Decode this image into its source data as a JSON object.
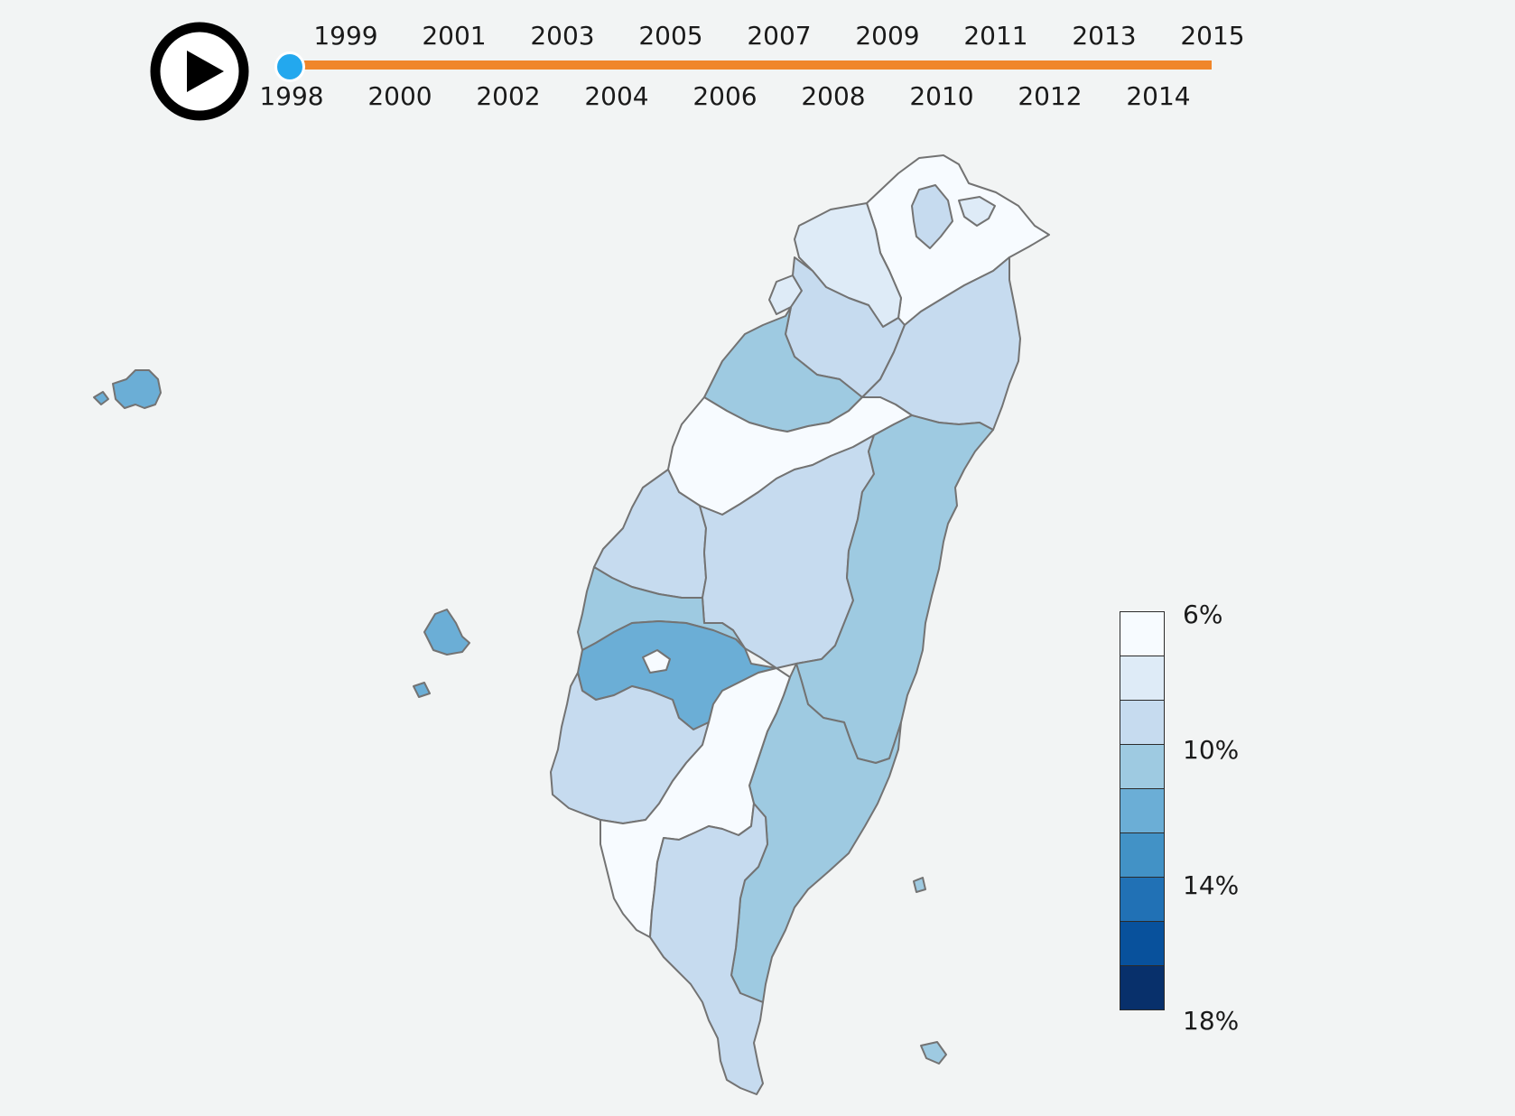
{
  "player": {
    "icon": "play-icon"
  },
  "timeline": {
    "years_top": [
      "1999",
      "2001",
      "2003",
      "2005",
      "2007",
      "2009",
      "2011",
      "2013",
      "2015"
    ],
    "years_bottom": [
      "1998",
      "2000",
      "2002",
      "2004",
      "2006",
      "2008",
      "2010",
      "2012",
      "2014"
    ],
    "selected_year": "1998",
    "colors": {
      "track": "#f0862a",
      "handle": "#23a8ee"
    }
  },
  "legend": {
    "colors": [
      "#f7fbff",
      "#deebf7",
      "#c6dbef",
      "#9ecae1",
      "#6baed6",
      "#4292c6",
      "#2171b5",
      "#08519c",
      "#08306b"
    ],
    "ticks": [
      "6%",
      "10%",
      "14%",
      "18%"
    ]
  },
  "map": {
    "regions": [
      {
        "id": "taipei",
        "bin": 2
      },
      {
        "id": "keelung",
        "bin": 1
      },
      {
        "id": "new-taipei",
        "bin": 0
      },
      {
        "id": "taoyuan",
        "bin": 1
      },
      {
        "id": "hsinchu-city",
        "bin": 1
      },
      {
        "id": "hsinchu-county",
        "bin": 2
      },
      {
        "id": "yilan",
        "bin": 2
      },
      {
        "id": "miaoli",
        "bin": 3
      },
      {
        "id": "taichung",
        "bin": 0
      },
      {
        "id": "changhua",
        "bin": 2
      },
      {
        "id": "nantou",
        "bin": 2
      },
      {
        "id": "hualien",
        "bin": 3
      },
      {
        "id": "yunlin",
        "bin": 3
      },
      {
        "id": "chiayi-county",
        "bin": 4
      },
      {
        "id": "chiayi-city",
        "bin": 0
      },
      {
        "id": "tainan",
        "bin": 2
      },
      {
        "id": "kaohsiung",
        "bin": 0
      },
      {
        "id": "pingtung",
        "bin": 2
      },
      {
        "id": "taitung",
        "bin": 3
      },
      {
        "id": "penghu",
        "bin": 4
      },
      {
        "id": "kinmen",
        "bin": 4
      },
      {
        "id": "green-island",
        "bin": 3
      },
      {
        "id": "orchid-island",
        "bin": 3
      }
    ]
  }
}
